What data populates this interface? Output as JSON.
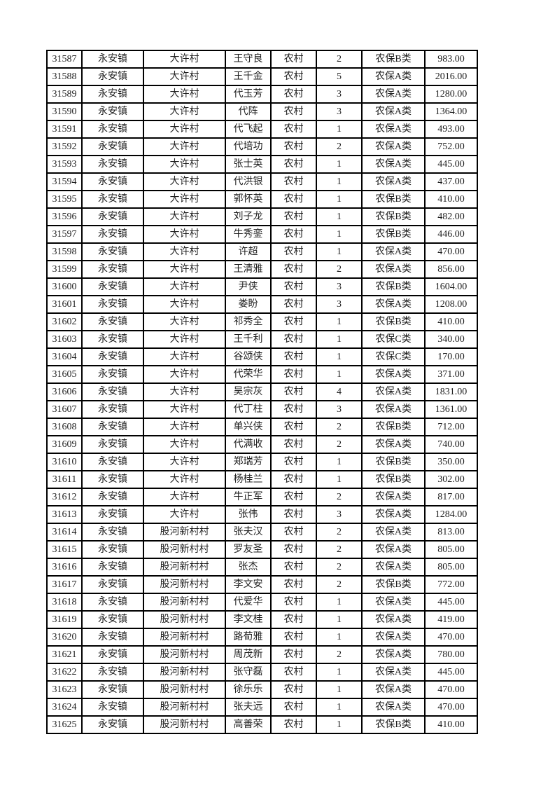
{
  "table": {
    "columns": [
      "serial",
      "town",
      "village",
      "name",
      "category",
      "count",
      "insurance_type",
      "amount"
    ],
    "rows": [
      [
        "31587",
        "永安镇",
        "大许村",
        "王守良",
        "农村",
        "2",
        "农保B类",
        "983.00"
      ],
      [
        "31588",
        "永安镇",
        "大许村",
        "王千金",
        "农村",
        "5",
        "农保A类",
        "2016.00"
      ],
      [
        "31589",
        "永安镇",
        "大许村",
        "代玉芳",
        "农村",
        "3",
        "农保A类",
        "1280.00"
      ],
      [
        "31590",
        "永安镇",
        "大许村",
        "代阵",
        "农村",
        "3",
        "农保A类",
        "1364.00"
      ],
      [
        "31591",
        "永安镇",
        "大许村",
        "代飞起",
        "农村",
        "1",
        "农保A类",
        "493.00"
      ],
      [
        "31592",
        "永安镇",
        "大许村",
        "代培功",
        "农村",
        "2",
        "农保A类",
        "752.00"
      ],
      [
        "31593",
        "永安镇",
        "大许村",
        "张士英",
        "农村",
        "1",
        "农保A类",
        "445.00"
      ],
      [
        "31594",
        "永安镇",
        "大许村",
        "代洪银",
        "农村",
        "1",
        "农保A类",
        "437.00"
      ],
      [
        "31595",
        "永安镇",
        "大许村",
        "郭怀英",
        "农村",
        "1",
        "农保B类",
        "410.00"
      ],
      [
        "31596",
        "永安镇",
        "大许村",
        "刘子龙",
        "农村",
        "1",
        "农保B类",
        "482.00"
      ],
      [
        "31597",
        "永安镇",
        "大许村",
        "牛秀銮",
        "农村",
        "1",
        "农保B类",
        "446.00"
      ],
      [
        "31598",
        "永安镇",
        "大许村",
        "许超",
        "农村",
        "1",
        "农保A类",
        "470.00"
      ],
      [
        "31599",
        "永安镇",
        "大许村",
        "王清雅",
        "农村",
        "2",
        "农保A类",
        "856.00"
      ],
      [
        "31600",
        "永安镇",
        "大许村",
        "尹侠",
        "农村",
        "3",
        "农保B类",
        "1604.00"
      ],
      [
        "31601",
        "永安镇",
        "大许村",
        "娄盼",
        "农村",
        "3",
        "农保A类",
        "1208.00"
      ],
      [
        "31602",
        "永安镇",
        "大许村",
        "祁秀全",
        "农村",
        "1",
        "农保B类",
        "410.00"
      ],
      [
        "31603",
        "永安镇",
        "大许村",
        "王千利",
        "农村",
        "1",
        "农保C类",
        "340.00"
      ],
      [
        "31604",
        "永安镇",
        "大许村",
        "谷颂侠",
        "农村",
        "1",
        "农保C类",
        "170.00"
      ],
      [
        "31605",
        "永安镇",
        "大许村",
        "代荣华",
        "农村",
        "1",
        "农保A类",
        "371.00"
      ],
      [
        "31606",
        "永安镇",
        "大许村",
        "吴宗灰",
        "农村",
        "4",
        "农保A类",
        "1831.00"
      ],
      [
        "31607",
        "永安镇",
        "大许村",
        "代丁柱",
        "农村",
        "3",
        "农保A类",
        "1361.00"
      ],
      [
        "31608",
        "永安镇",
        "大许村",
        "单兴侠",
        "农村",
        "2",
        "农保B类",
        "712.00"
      ],
      [
        "31609",
        "永安镇",
        "大许村",
        "代满收",
        "农村",
        "2",
        "农保A类",
        "740.00"
      ],
      [
        "31610",
        "永安镇",
        "大许村",
        "郑瑞芳",
        "农村",
        "1",
        "农保B类",
        "350.00"
      ],
      [
        "31611",
        "永安镇",
        "大许村",
        "杨桂兰",
        "农村",
        "1",
        "农保B类",
        "302.00"
      ],
      [
        "31612",
        "永安镇",
        "大许村",
        "牛正军",
        "农村",
        "2",
        "农保A类",
        "817.00"
      ],
      [
        "31613",
        "永安镇",
        "大许村",
        "张伟",
        "农村",
        "3",
        "农保A类",
        "1284.00"
      ],
      [
        "31614",
        "永安镇",
        "股河新村村",
        "张夫汉",
        "农村",
        "2",
        "农保A类",
        "813.00"
      ],
      [
        "31615",
        "永安镇",
        "股河新村村",
        "罗友圣",
        "农村",
        "2",
        "农保A类",
        "805.00"
      ],
      [
        "31616",
        "永安镇",
        "股河新村村",
        "张杰",
        "农村",
        "2",
        "农保A类",
        "805.00"
      ],
      [
        "31617",
        "永安镇",
        "股河新村村",
        "李文安",
        "农村",
        "2",
        "农保B类",
        "772.00"
      ],
      [
        "31618",
        "永安镇",
        "股河新村村",
        "代爱华",
        "农村",
        "1",
        "农保A类",
        "445.00"
      ],
      [
        "31619",
        "永安镇",
        "股河新村村",
        "李文桂",
        "农村",
        "1",
        "农保A类",
        "419.00"
      ],
      [
        "31620",
        "永安镇",
        "股河新村村",
        "路荀雅",
        "农村",
        "1",
        "农保A类",
        "470.00"
      ],
      [
        "31621",
        "永安镇",
        "股河新村村",
        "周茂新",
        "农村",
        "2",
        "农保A类",
        "780.00"
      ],
      [
        "31622",
        "永安镇",
        "股河新村村",
        "张守磊",
        "农村",
        "1",
        "农保A类",
        "445.00"
      ],
      [
        "31623",
        "永安镇",
        "股河新村村",
        "徐乐乐",
        "农村",
        "1",
        "农保A类",
        "470.00"
      ],
      [
        "31624",
        "永安镇",
        "股河新村村",
        "张夫远",
        "农村",
        "1",
        "农保A类",
        "470.00"
      ],
      [
        "31625",
        "永安镇",
        "股河新村村",
        "高善荣",
        "农村",
        "1",
        "农保B类",
        "410.00"
      ]
    ]
  },
  "colors": {
    "border": "#000000",
    "text": "#1f1f1f",
    "background": "#ffffff"
  }
}
